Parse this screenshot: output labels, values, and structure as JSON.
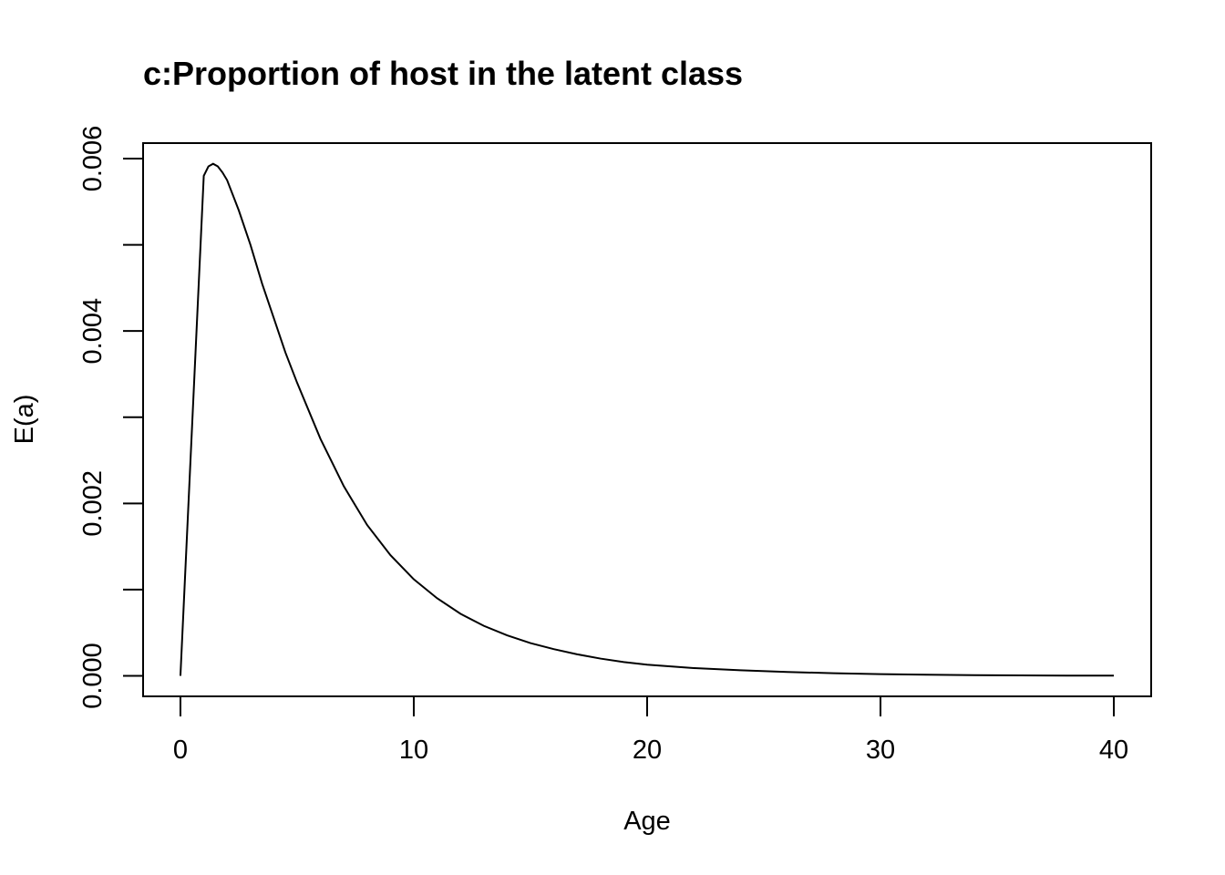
{
  "chart_data": {
    "type": "line",
    "title": "c:Proportion of host in the latent class",
    "xlabel": "Age",
    "ylabel": "E(a)",
    "xlim": [
      -1.6,
      41.6
    ],
    "ylim": [
      -0.000238,
      0.00618
    ],
    "x_ticks": [
      0,
      10,
      20,
      30,
      40
    ],
    "x_tick_labels": [
      "0",
      "10",
      "20",
      "30",
      "40"
    ],
    "y_ticks": [
      0,
      0.001,
      0.002,
      0.003,
      0.004,
      0.005,
      0.006
    ],
    "y_tick_labels": [
      "0.000",
      "",
      "0.002",
      "",
      "0.004",
      "",
      "0.006"
    ],
    "grid": false,
    "legend": "none",
    "line_color": "#000000",
    "series": [
      {
        "x": [
          0,
          0.5,
          1,
          1.2,
          1.4,
          1.6,
          1.8,
          2,
          2.5,
          3,
          3.5,
          4,
          4.5,
          5,
          6,
          7,
          8,
          9,
          10,
          11,
          12,
          13,
          14,
          15,
          16,
          17,
          18,
          19,
          20,
          22,
          24,
          26,
          28,
          30,
          32,
          34,
          36,
          38,
          40
        ],
        "y": [
          0,
          0.0029,
          0.0058,
          0.00591,
          0.00594,
          0.00591,
          0.00584,
          0.00575,
          0.0054,
          0.005,
          0.00455,
          0.00415,
          0.00375,
          0.0034,
          0.00275,
          0.0022,
          0.00175,
          0.0014,
          0.00112,
          0.0009,
          0.00072,
          0.00058,
          0.00047,
          0.00038,
          0.00031,
          0.00025,
          0.0002,
          0.00016,
          0.00013,
          9e-05,
          6.5e-05,
          4.5e-05,
          3e-05,
          2e-05,
          1.3e-05,
          8e-06,
          5e-06,
          3e-06,
          2e-06
        ]
      }
    ]
  }
}
